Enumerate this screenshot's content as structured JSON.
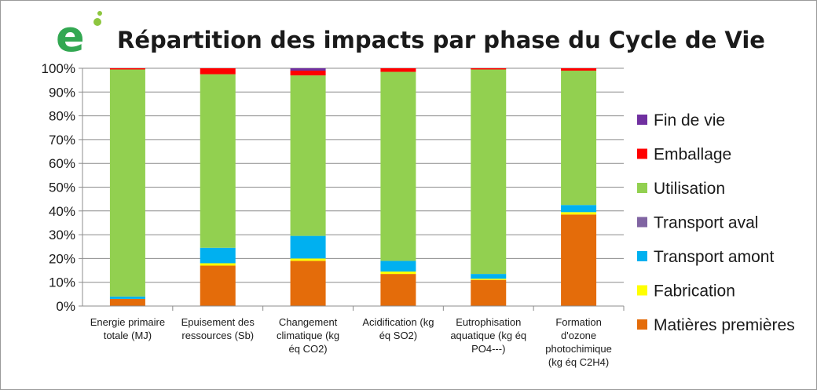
{
  "colors": {
    "Matières premières": "#e46c0a",
    "Fabrication": "#ffff00",
    "Transport amont": "#00b0f0",
    "Transport aval": "#8064a2",
    "Utilisation": "#92d050",
    "Emballage": "#ff0000",
    "Fin de vie": "#7030a0"
  },
  "logo_text": "e",
  "chart_data": {
    "type": "bar",
    "stacked": true,
    "title": "Répartition des impacts par phase du Cycle de Vie",
    "categories": [
      "Energie primaire totale (MJ)",
      "Epuisement des ressources (Sb)",
      "Changement climatique (kg éq CO2)",
      "Acidification (kg éq SO2)",
      "Eutrophisation aquatique (kg éq PO4---)",
      "Formation d'ozone photochimique (kg éq C2H4)"
    ],
    "category_lines": [
      [
        "Energie primaire",
        "totale (MJ)"
      ],
      [
        "Epuisement des",
        "ressources (Sb)"
      ],
      [
        "Changement",
        "climatique (kg",
        "éq CO2)"
      ],
      [
        "Acidification (kg",
        "éq SO2)"
      ],
      [
        "Eutrophisation",
        "aquatique (kg éq",
        "PO4---)"
      ],
      [
        "Formation",
        "d'ozone",
        "photochimique",
        "(kg éq C2H4)"
      ]
    ],
    "series": [
      {
        "name": "Matières premières",
        "values": [
          3,
          17,
          19,
          13.5,
          11,
          38.5
        ]
      },
      {
        "name": "Fabrication",
        "values": [
          0,
          1,
          1,
          1,
          0.5,
          1
        ]
      },
      {
        "name": "Transport amont",
        "values": [
          1,
          6.5,
          9.5,
          4.5,
          2,
          3
        ]
      },
      {
        "name": "Transport aval",
        "values": [
          0,
          0,
          0,
          0,
          0,
          0
        ]
      },
      {
        "name": "Utilisation",
        "values": [
          95.5,
          73,
          67.5,
          79.5,
          86,
          56.5
        ]
      },
      {
        "name": "Emballage",
        "values": [
          0.5,
          2.5,
          2,
          1.5,
          0.5,
          1
        ]
      },
      {
        "name": "Fin de vie",
        "values": [
          0,
          0,
          1,
          0,
          0,
          0
        ]
      }
    ],
    "y_ticks": [
      "0%",
      "10%",
      "20%",
      "30%",
      "40%",
      "50%",
      "60%",
      "70%",
      "80%",
      "90%",
      "100%"
    ],
    "ylim": [
      0,
      100
    ],
    "grid": true,
    "legend_position": "right",
    "legend_order": [
      "Fin de vie",
      "Emballage",
      "Utilisation",
      "Transport aval",
      "Transport amont",
      "Fabrication",
      "Matières premières"
    ]
  }
}
